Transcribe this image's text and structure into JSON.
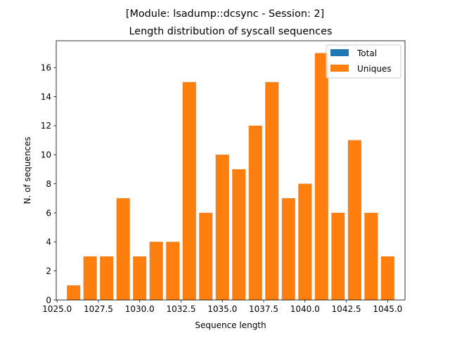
{
  "chart_data": {
    "type": "bar",
    "suptitle": "[Module: lsadump::dcsync - Session: 2]",
    "title": "Length distribution of syscall sequences",
    "xlabel": "Sequence length",
    "ylabel": "N. of sequences",
    "xlim": [
      1024.95,
      1046.05
    ],
    "ylim": [
      0,
      17.85
    ],
    "xticks": [
      1025.0,
      1027.5,
      1030.0,
      1032.5,
      1035.0,
      1037.5,
      1040.0,
      1042.5,
      1045.0
    ],
    "xtick_labels": [
      "1025.0",
      "1027.5",
      "1030.0",
      "1032.5",
      "1035.0",
      "1037.5",
      "1040.0",
      "1042.5",
      "1045.0"
    ],
    "yticks": [
      0,
      2,
      4,
      6,
      8,
      10,
      12,
      14,
      16
    ],
    "ytick_labels": [
      "0",
      "2",
      "4",
      "6",
      "8",
      "10",
      "12",
      "14",
      "16"
    ],
    "grid": false,
    "legend_position": "top-right",
    "bar_width": 0.8,
    "x": [
      1026,
      1027,
      1028,
      1029,
      1030,
      1031,
      1032,
      1033,
      1034,
      1035,
      1036,
      1037,
      1038,
      1039,
      1040,
      1041,
      1042,
      1043,
      1044,
      1045
    ],
    "series": [
      {
        "name": "Total",
        "color": "#1f77b4",
        "values": [
          1,
          3,
          3,
          7,
          3,
          4,
          4,
          15,
          6,
          10,
          9,
          12,
          15,
          7,
          8,
          17,
          6,
          11,
          6,
          3
        ]
      },
      {
        "name": "Uniques",
        "color": "#ff7f0e",
        "values": [
          1,
          3,
          3,
          7,
          3,
          4,
          4,
          15,
          6,
          10,
          9,
          12,
          15,
          7,
          8,
          17,
          6,
          11,
          6,
          3
        ]
      }
    ]
  }
}
